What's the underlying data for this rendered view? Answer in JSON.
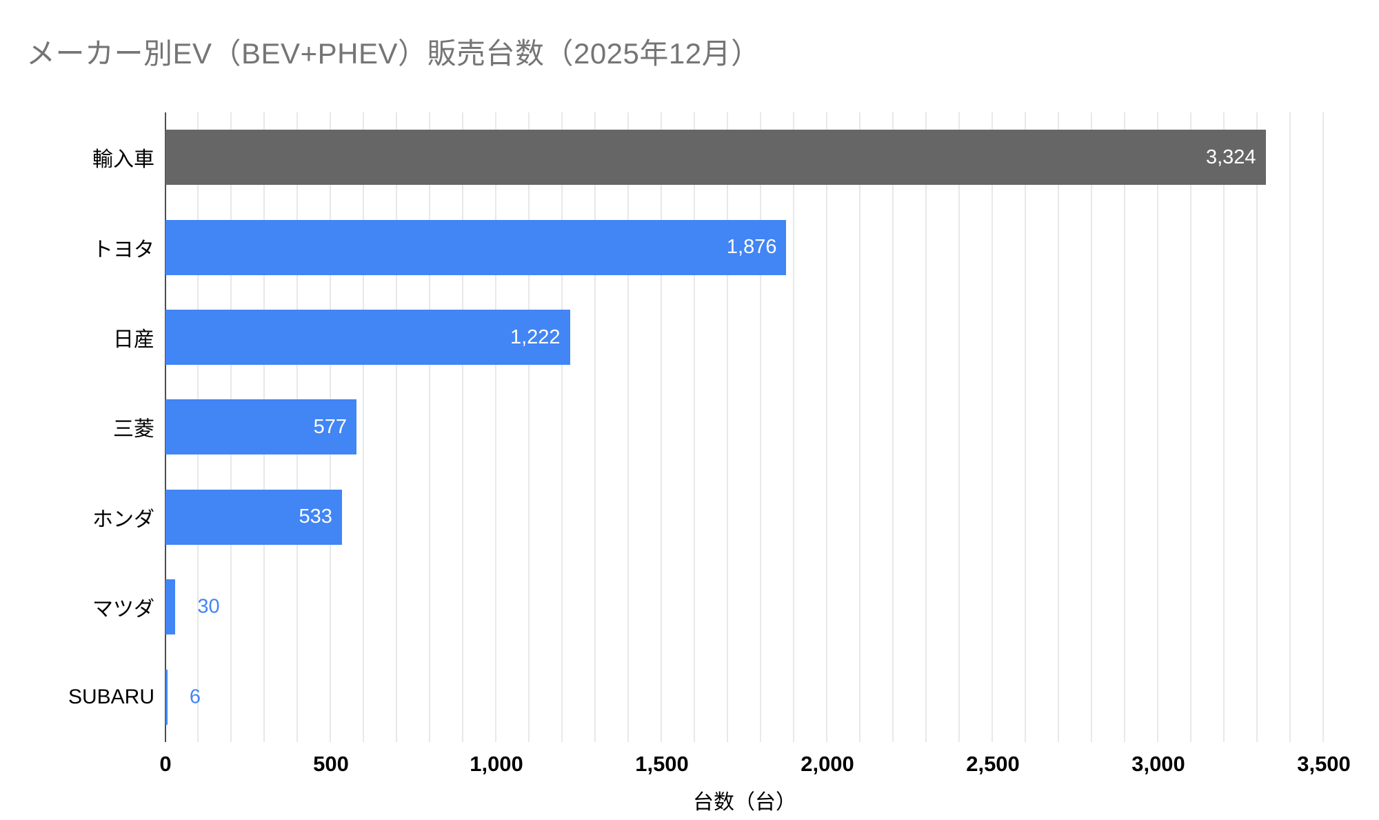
{
  "chart_data": {
    "type": "bar",
    "orientation": "horizontal",
    "title": "メーカー別EV（BEV+PHEV）販売台数（2025年12月）",
    "xlabel": "台数（台）",
    "categories": [
      "輸入車",
      "トヨタ",
      "日産",
      "三菱",
      "ホンダ",
      "マツダ",
      "SUBARU"
    ],
    "values": [
      3324,
      1876,
      1222,
      577,
      533,
      30,
      6
    ],
    "value_labels": [
      "3,324",
      "1,876",
      "1,222",
      "577",
      "533",
      "30",
      "6"
    ],
    "bar_colors": [
      "#666666",
      "#4285F4",
      "#4285F4",
      "#4285F4",
      "#4285F4",
      "#4285F4",
      "#4285F4"
    ],
    "label_inside": [
      true,
      true,
      true,
      true,
      true,
      false,
      false
    ],
    "xlim": [
      0,
      3500
    ],
    "xticks": [
      0,
      500,
      1000,
      1500,
      2000,
      2500,
      3000,
      3500
    ],
    "xtick_labels": [
      "0",
      "500",
      "1,000",
      "1,500",
      "2,000",
      "2,500",
      "3,000",
      "3,500"
    ],
    "minor_gridline_step": 100,
    "grid": "vertical-minor-gridlines",
    "legend": "none",
    "colors": {
      "bar_blue": "#4285F4",
      "bar_gray": "#666666",
      "value_label_inside": "#ffffff",
      "value_label_outside": "#4285F4",
      "title_text": "#757575",
      "axis_text": "#000000",
      "gridline": "#e8e8e8",
      "axis_line": "#4d4d4d",
      "background": "#ffffff"
    }
  }
}
